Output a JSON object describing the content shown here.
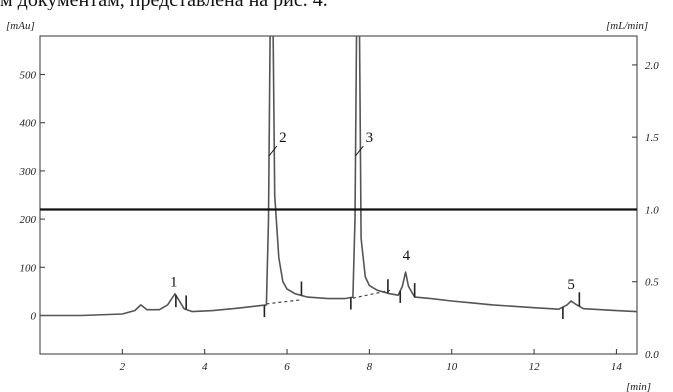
{
  "caption_fragment": "м документам, представлена на рис. 4.",
  "chart_data": {
    "type": "line",
    "title": "",
    "xlabel": "[min]",
    "ylabel_left": "[mAu]",
    "ylabel_right": "[mL/min]",
    "xlim": [
      0,
      14.5
    ],
    "ylim_left": [
      -80,
      580
    ],
    "ylim_right": [
      0.0,
      2.2
    ],
    "x_ticks": [
      2,
      4,
      6,
      8,
      10,
      12,
      14
    ],
    "x_tick_labels": [
      "2",
      "4",
      "6",
      "8",
      "10",
      "12",
      "14"
    ],
    "y_left_ticks": [
      0,
      100,
      200,
      300,
      400,
      500
    ],
    "y_left_tick_labels": [
      "0",
      "100",
      "200",
      "300",
      "400",
      "500"
    ],
    "y_right_ticks": [
      0.0,
      0.5,
      1.0,
      1.5,
      2.0
    ],
    "y_right_tick_labels": [
      "0.0",
      "0.5",
      "1.0",
      "1.5",
      "2.0"
    ],
    "grid": false,
    "series": [
      {
        "axis": "left",
        "color": "#555555",
        "x": [
          0,
          1.0,
          2.0,
          2.3,
          2.45,
          2.6,
          2.9,
          3.1,
          3.2,
          3.28,
          3.35,
          3.5,
          3.7,
          4.2,
          4.8,
          5.3,
          5.5,
          5.55,
          5.6,
          5.65,
          5.7,
          5.8,
          5.9,
          6.0,
          6.2,
          6.5,
          7.0,
          7.4,
          7.6,
          7.65,
          7.7,
          7.75,
          7.8,
          7.9,
          8.0,
          8.2,
          8.5,
          8.7,
          8.8,
          8.88,
          8.95,
          9.1,
          9.5,
          10.0,
          10.5,
          11.0,
          12.0,
          12.6,
          12.8,
          12.9,
          13.0,
          13.2,
          14.0,
          14.5
        ],
        "y": [
          0,
          0,
          3,
          10,
          22,
          12,
          12,
          22,
          35,
          45,
          35,
          14,
          8,
          10,
          15,
          20,
          22,
          200,
          700,
          700,
          250,
          120,
          70,
          55,
          45,
          38,
          35,
          35,
          38,
          200,
          700,
          700,
          160,
          80,
          62,
          52,
          45,
          42,
          60,
          90,
          60,
          38,
          35,
          30,
          26,
          22,
          16,
          13,
          22,
          30,
          24,
          14,
          10,
          8
        ]
      },
      {
        "axis": "right",
        "name": "",
        "color": "#111111",
        "x": [
          0,
          14.5
        ],
        "y": [
          1.0,
          1.0
        ]
      }
    ],
    "peak_labels": [
      {
        "text": "1",
        "x": 3.25,
        "y": 60
      },
      {
        "text": "2",
        "x": 5.9,
        "y": 360
      },
      {
        "text": "3",
        "x": 8.0,
        "y": 360
      },
      {
        "text": "4",
        "x": 8.9,
        "y": 115
      },
      {
        "text": "5",
        "x": 12.9,
        "y": 55
      }
    ],
    "integration_marks_x": [
      3.3,
      3.55,
      5.45,
      6.35,
      7.55,
      8.45,
      8.75,
      9.1,
      12.7,
      13.1
    ],
    "baseline_dashed_segments": [
      {
        "x": [
          5.5,
          6.3
        ],
        "y": [
          24,
          32
        ]
      },
      {
        "x": [
          7.6,
          8.5
        ],
        "y": [
          36,
          52
        ]
      }
    ]
  }
}
